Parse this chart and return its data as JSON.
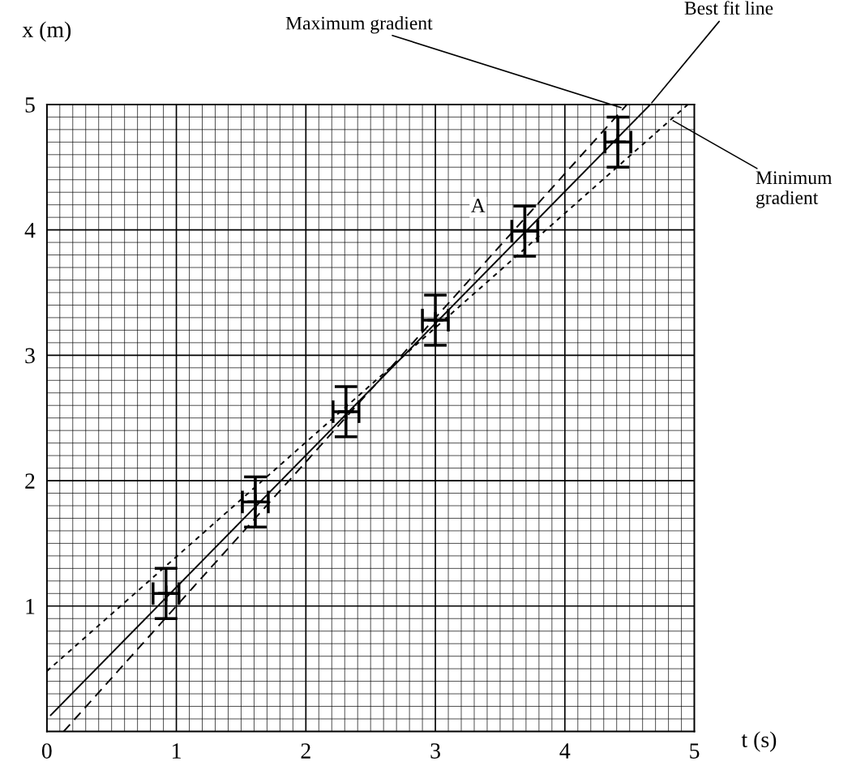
{
  "chart_data": {
    "type": "scatter",
    "xlabel": "t (s)",
    "ylabel": "x (m)",
    "xlim": [
      0,
      5
    ],
    "ylim": [
      0,
      5
    ],
    "xticks": [
      0,
      1,
      2,
      3,
      4,
      5
    ],
    "yticks": [
      1,
      2,
      3,
      4,
      5
    ],
    "grid": true,
    "series": [
      {
        "color": "#000000",
        "marker": "cross",
        "x": [
          0.92,
          1.61,
          2.31,
          3.0,
          3.69,
          4.41
        ],
        "values": [
          1.1,
          1.83,
          2.55,
          3.28,
          3.99,
          4.7
        ],
        "errors": [
          0.2,
          0.2,
          0.2,
          0.2,
          0.2,
          0.2
        ],
        "xerrors": [
          0.1,
          0.1,
          0.1,
          0.1,
          0.1,
          0.1
        ]
      },
      {
        "type": "line",
        "color": "#000000",
        "line_style": "solid",
        "x": [
          0.03,
          4.66
        ],
        "values": [
          0.13,
          5.0
        ]
      },
      {
        "type": "line",
        "color": "#000000",
        "line_style": "dashed",
        "x": [
          0.13,
          4.48
        ],
        "values": [
          0.0,
          5.0
        ]
      },
      {
        "type": "line",
        "color": "#000000",
        "line_style": "dotted",
        "x": [
          0.0,
          4.95
        ],
        "values": [
          0.48,
          5.0
        ]
      }
    ],
    "annotations": [
      {
        "text": "Best fit line",
        "x": 4.66,
        "y": 5.0
      },
      {
        "text": "Maximum gradient",
        "x": 4.45,
        "y": 4.97
      },
      {
        "text": "Minimum\ngradient",
        "x": 4.82,
        "y": 4.88
      },
      "A"
    ]
  }
}
